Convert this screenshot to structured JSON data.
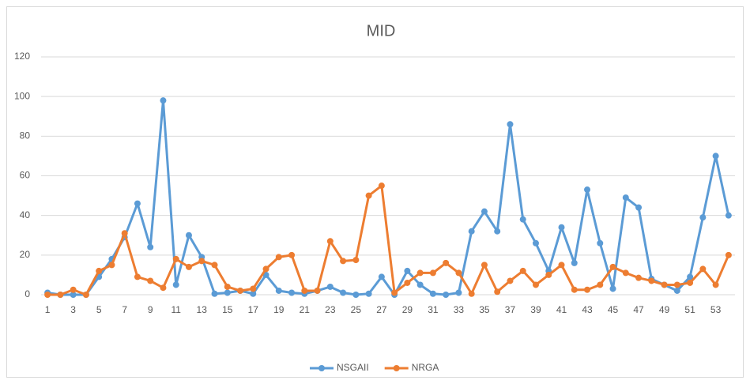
{
  "chart_data": {
    "type": "line",
    "title": "MID",
    "categories": [
      1,
      null,
      3,
      null,
      5,
      null,
      7,
      null,
      9,
      null,
      11,
      null,
      13,
      null,
      15,
      null,
      17,
      null,
      19,
      null,
      21,
      null,
      23,
      null,
      25,
      null,
      27,
      null,
      29,
      null,
      31,
      null,
      33,
      null,
      35,
      null,
      37,
      null,
      39,
      null,
      41,
      null,
      43,
      null,
      45,
      null,
      47,
      null,
      49,
      null,
      51,
      null,
      53,
      null
    ],
    "series": [
      {
        "name": "NSGAII",
        "color": "#5b9bd5",
        "values": [
          1,
          0,
          0,
          0,
          9,
          18,
          29,
          46,
          24,
          98,
          5,
          30,
          19,
          0.5,
          1,
          2,
          0.5,
          10,
          2,
          1,
          0.5,
          2,
          4,
          1,
          0,
          0.5,
          9,
          0,
          12,
          5,
          0.5,
          0,
          1,
          32,
          42,
          32,
          86,
          38,
          26,
          12,
          34,
          16,
          53,
          26,
          3,
          49,
          44,
          8,
          5,
          2,
          9,
          39,
          70,
          40
        ]
      },
      {
        "name": "NRGA",
        "color": "#ed7d31",
        "values": [
          0,
          0,
          2.5,
          0,
          12,
          15,
          31,
          9,
          7,
          3.5,
          18,
          14,
          17,
          15,
          4,
          2,
          3,
          13,
          19,
          20,
          2,
          2,
          27,
          17,
          17.5,
          50,
          55,
          1,
          6,
          11,
          11,
          16,
          11,
          0.5,
          15,
          1.5,
          7,
          12,
          5,
          10,
          15,
          2.5,
          2.5,
          5,
          14,
          11,
          8.5,
          7,
          5,
          5,
          6,
          13,
          5,
          20
        ]
      }
    ],
    "ylim": [
      0,
      120
    ],
    "yticks": [
      0,
      20,
      40,
      60,
      80,
      100,
      120
    ],
    "grid": true,
    "legend": "bottom"
  }
}
